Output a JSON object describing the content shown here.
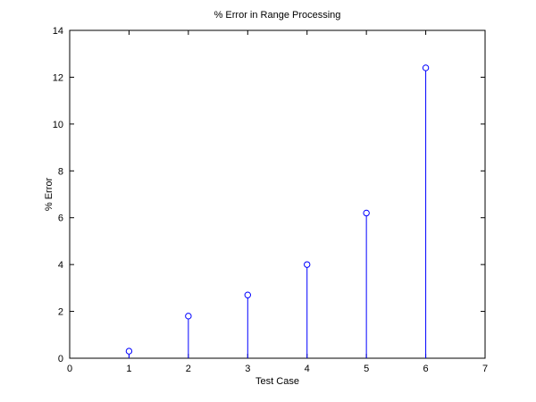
{
  "chart_data": {
    "type": "stem",
    "title": "% Error in Range Processing",
    "xlabel": "Test Case",
    "ylabel": "% Error",
    "xlim": [
      0,
      7
    ],
    "ylim": [
      0,
      14
    ],
    "xticks": [
      0,
      1,
      2,
      3,
      4,
      5,
      6,
      7
    ],
    "yticks": [
      0,
      2,
      4,
      6,
      8,
      10,
      12,
      14
    ],
    "grid": false,
    "series": [
      {
        "x": [
          1,
          2,
          3,
          4,
          5,
          6
        ],
        "y": [
          0.3,
          1.8,
          2.7,
          4.0,
          6.2,
          12.4
        ],
        "color": "#0000ff",
        "marker": "circle-open"
      }
    ]
  }
}
